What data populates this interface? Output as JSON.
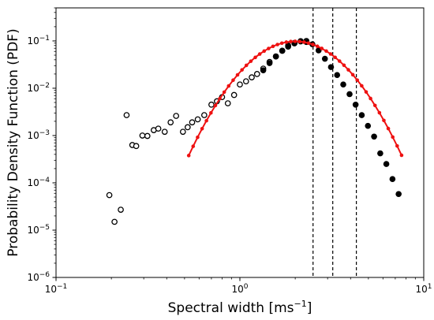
{
  "chart_data": {
    "type": "scatter",
    "xlabel_main": "Spectral width [ms",
    "xlabel_sup": "−1",
    "xlabel_end": "]",
    "ylabel": "Probability Density Function (PDF)",
    "x_scale": "log",
    "y_scale": "log",
    "xlim": [
      0.1,
      10
    ],
    "ylim": [
      1e-06,
      0.5
    ],
    "grid": false,
    "x_ticks": [
      {
        "value": 0.1,
        "base": "10",
        "exp": "−1"
      },
      {
        "value": 1,
        "base": "10",
        "exp": "0"
      },
      {
        "value": 10,
        "base": "10",
        "exp": "1"
      }
    ],
    "y_ticks": [
      {
        "value": 1e-06,
        "base": "10",
        "exp": "−6"
      },
      {
        "value": 1e-05,
        "base": "10",
        "exp": "−5"
      },
      {
        "value": 0.0001,
        "base": "10",
        "exp": "−4"
      },
      {
        "value": 0.001,
        "base": "10",
        "exp": "−3"
      },
      {
        "value": 0.01,
        "base": "10",
        "exp": "−2"
      },
      {
        "value": 0.1,
        "base": "10",
        "exp": "−1"
      }
    ],
    "vlines": [
      2.5,
      3.2,
      4.3
    ],
    "series": [
      {
        "marker": "open-circle",
        "color": "#000000",
        "points": [
          [
            0.195,
            5.5e-05
          ],
          [
            0.208,
            1.5e-05
          ],
          [
            0.225,
            2.7e-05
          ],
          [
            0.242,
            0.0027
          ],
          [
            0.26,
            0.00063
          ],
          [
            0.273,
            0.0006
          ],
          [
            0.295,
            0.001
          ],
          [
            0.314,
            0.00098
          ],
          [
            0.34,
            0.0013
          ],
          [
            0.36,
            0.0014
          ],
          [
            0.39,
            0.0012
          ],
          [
            0.42,
            0.0019
          ],
          [
            0.45,
            0.0026
          ],
          [
            0.49,
            0.0012
          ],
          [
            0.52,
            0.0015
          ],
          [
            0.55,
            0.0019
          ],
          [
            0.59,
            0.0022
          ],
          [
            0.64,
            0.0027
          ],
          [
            0.7,
            0.0045
          ],
          [
            0.75,
            0.0053
          ],
          [
            0.8,
            0.0065
          ],
          [
            0.86,
            0.0048
          ],
          [
            0.93,
            0.0072
          ],
          [
            1.0,
            0.012
          ],
          [
            1.08,
            0.014
          ],
          [
            1.16,
            0.017
          ],
          [
            1.24,
            0.02
          ],
          [
            1.34,
            0.026
          ],
          [
            1.45,
            0.036
          ],
          [
            1.57,
            0.047
          ],
          [
            1.7,
            0.062
          ],
          [
            1.83,
            0.076
          ],
          [
            1.98,
            0.089
          ],
          [
            2.14,
            0.098
          ],
          [
            2.3,
            0.1
          ]
        ]
      },
      {
        "marker": "filled-circle",
        "color": "#000000",
        "points": [
          [
            1.34,
            0.024
          ],
          [
            1.45,
            0.034
          ],
          [
            1.57,
            0.047
          ],
          [
            1.7,
            0.062
          ],
          [
            1.83,
            0.08
          ],
          [
            1.98,
            0.091
          ],
          [
            2.14,
            0.099
          ],
          [
            2.3,
            0.095
          ],
          [
            2.48,
            0.085
          ],
          [
            2.68,
            0.063
          ],
          [
            2.9,
            0.042
          ],
          [
            3.13,
            0.028
          ],
          [
            3.38,
            0.019
          ],
          [
            3.65,
            0.012
          ],
          [
            3.95,
            0.0075
          ],
          [
            4.26,
            0.0045
          ],
          [
            4.6,
            0.0027
          ],
          [
            4.97,
            0.0016
          ],
          [
            5.37,
            0.00095
          ],
          [
            5.8,
            0.00042
          ],
          [
            6.26,
            0.00025
          ],
          [
            6.76,
            0.00012
          ],
          [
            7.3,
            5.8e-05
          ]
        ]
      },
      {
        "marker": "red-line-dot",
        "color": "#ee1111",
        "lognormal": {
          "peak_x": 2.0,
          "peak_y": 0.098,
          "sigma_ln": 0.4
        },
        "x_points": [
          0.527,
          0.557,
          0.589,
          0.623,
          0.658,
          0.696,
          0.736,
          0.778,
          0.822,
          0.869,
          0.919,
          0.971,
          1.027,
          1.085,
          1.147,
          1.213,
          1.282,
          1.355,
          1.433,
          1.514,
          1.601,
          1.692,
          1.789,
          1.891,
          1.999,
          2.113,
          2.234,
          2.361,
          2.496,
          2.639,
          2.789,
          2.949,
          3.117,
          3.295,
          3.483,
          3.682,
          3.892,
          4.114,
          4.349,
          4.597,
          4.86,
          5.137,
          5.431,
          5.741,
          6.068,
          6.415,
          6.781,
          7.168,
          7.577
        ],
        "y_min_visible": 1.6e-06
      }
    ]
  }
}
